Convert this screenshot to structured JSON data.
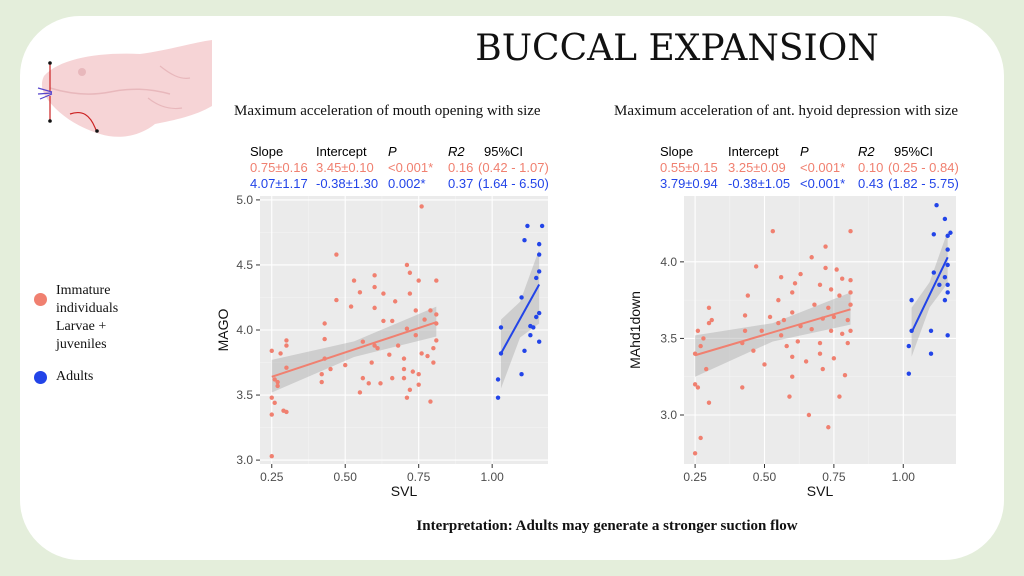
{
  "title": "BUCCAL EXPANSION",
  "interpretation": "Interpretation: Adults may generate a stronger suction flow",
  "legend": [
    {
      "label_lines": [
        "Immature",
        "individuals",
        "Larvae +",
        "juveniles"
      ],
      "color": "#f08070"
    },
    {
      "label_lines": [
        "Adults"
      ],
      "color": "#2244e8"
    }
  ],
  "colors": {
    "immature": "#f08070",
    "adults": "#2244e8",
    "panel_bg": "#ebebeb",
    "grid": "#ffffff",
    "ci_band": "#aaaaaa"
  },
  "stats_headers": [
    "Slope",
    "Intercept",
    "P",
    "R2",
    "95%CI"
  ],
  "panels": [
    {
      "subtitle": "Maximum acceleration of mouth opening with size",
      "stats": {
        "immature": [
          "0.75±0.16",
          "3.45±0.10",
          "<0.001*",
          "0.16",
          "(0.42 - 1.07)"
        ],
        "adults": [
          "4.07±1.17",
          "-0.38±1.30",
          "0.002*",
          "0.37",
          "(1.64 - 6.50)"
        ]
      },
      "chart_data": {
        "type": "scatter",
        "xlabel": "SVL",
        "ylabel": "MAGO",
        "xlim": [
          0.21,
          1.19
        ],
        "ylim": [
          2.97,
          5.03
        ],
        "xticks": [
          0.25,
          0.5,
          0.75,
          1.0
        ],
        "xtick_labels": [
          "0.25",
          "0.50",
          "0.75",
          "1.00"
        ],
        "yticks": [
          3.0,
          3.5,
          4.0,
          4.5,
          5.0
        ],
        "ytick_labels": [
          "3.0",
          "3.5",
          "4.0",
          "4.5",
          "5.0"
        ],
        "grid": true,
        "series": [
          {
            "color": "#f08070",
            "fit": {
              "x": [
                0.25,
                0.81
              ],
              "y": [
                3.64,
                4.06
              ],
              "ci_low": [
                3.52,
                3.95
              ],
              "ci_high": [
                3.77,
                4.18
              ]
            },
            "points": [
              [
                0.25,
                3.03
              ],
              [
                0.25,
                3.35
              ],
              [
                0.25,
                3.48
              ],
              [
                0.25,
                3.84
              ],
              [
                0.26,
                3.44
              ],
              [
                0.26,
                3.62
              ],
              [
                0.27,
                3.57
              ],
              [
                0.27,
                3.6
              ],
              [
                0.28,
                3.82
              ],
              [
                0.29,
                3.38
              ],
              [
                0.3,
                3.37
              ],
              [
                0.3,
                3.88
              ],
              [
                0.3,
                3.92
              ],
              [
                0.3,
                3.71
              ],
              [
                0.42,
                3.6
              ],
              [
                0.42,
                3.66
              ],
              [
                0.43,
                3.78
              ],
              [
                0.43,
                3.93
              ],
              [
                0.43,
                4.05
              ],
              [
                0.45,
                3.7
              ],
              [
                0.47,
                4.23
              ],
              [
                0.47,
                4.58
              ],
              [
                0.5,
                3.73
              ],
              [
                0.52,
                4.18
              ],
              [
                0.53,
                4.38
              ],
              [
                0.55,
                3.52
              ],
              [
                0.55,
                4.29
              ],
              [
                0.56,
                3.91
              ],
              [
                0.56,
                3.63
              ],
              [
                0.58,
                3.59
              ],
              [
                0.59,
                3.75
              ],
              [
                0.6,
                3.88
              ],
              [
                0.6,
                4.17
              ],
              [
                0.6,
                4.33
              ],
              [
                0.6,
                4.42
              ],
              [
                0.61,
                3.86
              ],
              [
                0.62,
                3.59
              ],
              [
                0.63,
                4.07
              ],
              [
                0.63,
                4.28
              ],
              [
                0.65,
                3.81
              ],
              [
                0.66,
                3.63
              ],
              [
                0.66,
                4.07
              ],
              [
                0.67,
                4.22
              ],
              [
                0.68,
                3.88
              ],
              [
                0.7,
                3.63
              ],
              [
                0.7,
                3.7
              ],
              [
                0.7,
                3.78
              ],
              [
                0.71,
                3.48
              ],
              [
                0.71,
                4.01
              ],
              [
                0.71,
                4.5
              ],
              [
                0.72,
                3.54
              ],
              [
                0.72,
                4.28
              ],
              [
                0.72,
                4.44
              ],
              [
                0.73,
                3.68
              ],
              [
                0.74,
                3.96
              ],
              [
                0.74,
                4.15
              ],
              [
                0.75,
                3.58
              ],
              [
                0.75,
                3.66
              ],
              [
                0.75,
                4.38
              ],
              [
                0.76,
                4.95
              ],
              [
                0.76,
                3.82
              ],
              [
                0.77,
                4.08
              ],
              [
                0.78,
                3.8
              ],
              [
                0.79,
                3.45
              ],
              [
                0.79,
                4.15
              ],
              [
                0.8,
                3.75
              ],
              [
                0.8,
                3.86
              ],
              [
                0.81,
                3.92
              ],
              [
                0.81,
                4.05
              ],
              [
                0.81,
                4.12
              ],
              [
                0.81,
                4.38
              ]
            ]
          },
          {
            "color": "#2244e8",
            "fit": {
              "x": [
                1.03,
                1.16
              ],
              "y": [
                3.82,
                4.35
              ],
              "ci_low": [
                3.55,
                4.05
              ],
              "ci_high": [
                4.08,
                4.62
              ]
            },
            "points": [
              [
                1.02,
                3.48
              ],
              [
                1.02,
                3.62
              ],
              [
                1.03,
                3.82
              ],
              [
                1.03,
                4.02
              ],
              [
                1.1,
                3.66
              ],
              [
                1.1,
                4.25
              ],
              [
                1.11,
                3.84
              ],
              [
                1.11,
                4.69
              ],
              [
                1.12,
                4.8
              ],
              [
                1.13,
                3.96
              ],
              [
                1.13,
                4.03
              ],
              [
                1.14,
                4.02
              ],
              [
                1.15,
                4.1
              ],
              [
                1.15,
                4.4
              ],
              [
                1.16,
                4.13
              ],
              [
                1.16,
                4.45
              ],
              [
                1.16,
                4.58
              ],
              [
                1.16,
                4.66
              ],
              [
                1.17,
                4.8
              ],
              [
                1.16,
                3.91
              ]
            ]
          }
        ]
      }
    },
    {
      "subtitle": "Maximum acceleration of ant. hyoid depression with size",
      "stats": {
        "immature": [
          "0.55±0.15",
          "3.25±0.09",
          "<0.001*",
          "0.10",
          "(0.25 - 0.84)"
        ],
        "adults": [
          "3.79±0.94",
          "-0.38±1.05",
          "<0.001*",
          "0.43",
          "(1.82 - 5.75)"
        ]
      },
      "chart_data": {
        "type": "scatter",
        "xlabel": "SVL",
        "ylabel": "MAhd1down",
        "xlim": [
          0.21,
          1.19
        ],
        "ylim": [
          2.68,
          4.43
        ],
        "xticks": [
          0.25,
          0.5,
          0.75,
          1.0
        ],
        "xtick_labels": [
          "0.25",
          "0.50",
          "0.75",
          "1.00"
        ],
        "yticks": [
          3.0,
          3.5,
          4.0
        ],
        "ytick_labels": [
          "3.0",
          "3.5",
          "4.0"
        ],
        "grid": true,
        "series": [
          {
            "color": "#f08070",
            "fit": {
              "x": [
                0.25,
                0.81
              ],
              "y": [
                3.39,
                3.69
              ],
              "ci_low": [
                3.25,
                3.59
              ],
              "ci_high": [
                3.52,
                3.8
              ]
            },
            "points": [
              [
                0.25,
                2.75
              ],
              [
                0.25,
                3.2
              ],
              [
                0.25,
                3.4
              ],
              [
                0.26,
                3.18
              ],
              [
                0.26,
                3.55
              ],
              [
                0.27,
                2.85
              ],
              [
                0.27,
                3.45
              ],
              [
                0.28,
                3.5
              ],
              [
                0.29,
                3.3
              ],
              [
                0.3,
                3.08
              ],
              [
                0.3,
                3.6
              ],
              [
                0.3,
                3.7
              ],
              [
                0.31,
                3.62
              ],
              [
                0.42,
                3.18
              ],
              [
                0.42,
                3.47
              ],
              [
                0.43,
                3.55
              ],
              [
                0.43,
                3.65
              ],
              [
                0.44,
                3.78
              ],
              [
                0.46,
                3.42
              ],
              [
                0.47,
                3.97
              ],
              [
                0.49,
                3.55
              ],
              [
                0.5,
                3.33
              ],
              [
                0.52,
                3.64
              ],
              [
                0.53,
                4.2
              ],
              [
                0.55,
                3.6
              ],
              [
                0.55,
                3.75
              ],
              [
                0.56,
                3.52
              ],
              [
                0.56,
                3.9
              ],
              [
                0.57,
                3.62
              ],
              [
                0.58,
                3.45
              ],
              [
                0.59,
                3.12
              ],
              [
                0.6,
                3.25
              ],
              [
                0.6,
                3.38
              ],
              [
                0.6,
                3.67
              ],
              [
                0.6,
                3.8
              ],
              [
                0.61,
                3.86
              ],
              [
                0.62,
                3.48
              ],
              [
                0.63,
                3.58
              ],
              [
                0.63,
                3.92
              ],
              [
                0.65,
                3.35
              ],
              [
                0.66,
                3.0
              ],
              [
                0.67,
                3.56
              ],
              [
                0.67,
                4.03
              ],
              [
                0.68,
                3.72
              ],
              [
                0.7,
                3.4
              ],
              [
                0.7,
                3.47
              ],
              [
                0.7,
                3.85
              ],
              [
                0.71,
                3.3
              ],
              [
                0.71,
                3.63
              ],
              [
                0.72,
                3.96
              ],
              [
                0.72,
                4.1
              ],
              [
                0.73,
                2.92
              ],
              [
                0.73,
                3.7
              ],
              [
                0.74,
                3.55
              ],
              [
                0.74,
                3.82
              ],
              [
                0.75,
                3.37
              ],
              [
                0.75,
                3.64
              ],
              [
                0.76,
                3.95
              ],
              [
                0.77,
                3.12
              ],
              [
                0.77,
                3.78
              ],
              [
                0.78,
                3.53
              ],
              [
                0.78,
                3.89
              ],
              [
                0.79,
                3.26
              ],
              [
                0.8,
                3.47
              ],
              [
                0.8,
                3.62
              ],
              [
                0.81,
                3.72
              ],
              [
                0.81,
                3.8
              ],
              [
                0.81,
                3.88
              ],
              [
                0.81,
                4.2
              ],
              [
                0.81,
                3.55
              ]
            ]
          },
          {
            "color": "#2244e8",
            "fit": {
              "x": [
                1.03,
                1.16
              ],
              "y": [
                3.54,
                4.03
              ],
              "ci_low": [
                3.38,
                3.86
              ],
              "ci_high": [
                3.7,
                4.2
              ]
            },
            "points": [
              [
                1.02,
                3.27
              ],
              [
                1.02,
                3.45
              ],
              [
                1.03,
                3.55
              ],
              [
                1.03,
                3.75
              ],
              [
                1.1,
                3.4
              ],
              [
                1.1,
                3.55
              ],
              [
                1.11,
                3.93
              ],
              [
                1.11,
                4.18
              ],
              [
                1.12,
                4.37
              ],
              [
                1.13,
                3.85
              ],
              [
                1.15,
                3.75
              ],
              [
                1.15,
                3.9
              ],
              [
                1.15,
                4.28
              ],
              [
                1.16,
                3.8
              ],
              [
                1.16,
                3.85
              ],
              [
                1.16,
                3.98
              ],
              [
                1.16,
                4.08
              ],
              [
                1.16,
                4.17
              ],
              [
                1.17,
                4.19
              ],
              [
                1.16,
                3.52
              ]
            ]
          }
        ]
      }
    }
  ]
}
